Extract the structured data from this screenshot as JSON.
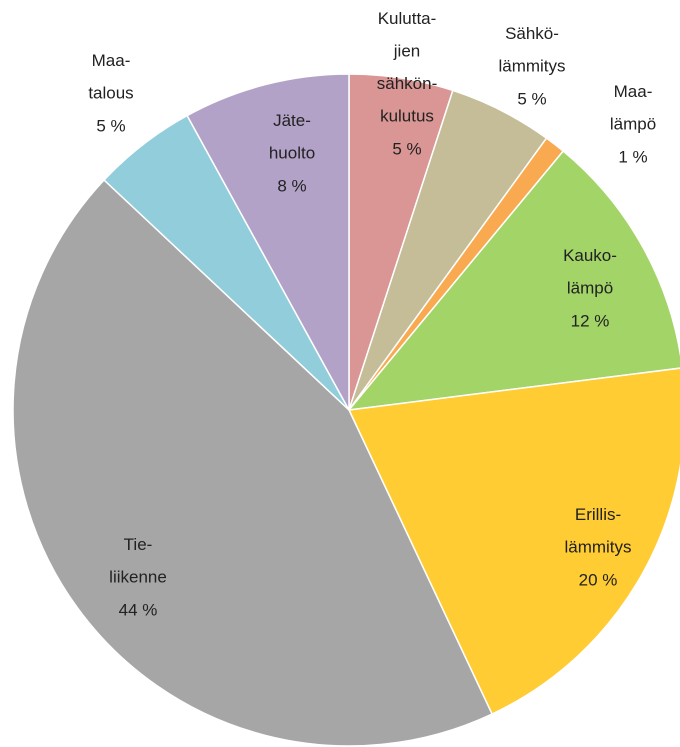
{
  "chart_data": {
    "type": "pie",
    "categories": [
      "Kulutta-\njien\nsähkön-\nkulutus",
      "Sähkö-\nlämmitys",
      "Maa-\nlämpö",
      "Kauko-\nlämpö",
      "Erillis-\nlämmitys",
      "Tie-\nliikenne",
      "Maa-\ntalous",
      "Jäte-\nhuolto"
    ],
    "values": [
      5,
      5,
      1,
      12,
      20,
      44,
      5,
      8
    ],
    "value_labels": [
      "5 %",
      "5 %",
      "1 %",
      "12 %",
      "20 %",
      "44 %",
      "5 %",
      "8 %"
    ],
    "colors": [
      "#d99694",
      "#c4bd97",
      "#f9a94f",
      "#a3d468",
      "#ffcc33",
      "#a6a6a6",
      "#92cddc",
      "#b3a2c7"
    ]
  }
}
